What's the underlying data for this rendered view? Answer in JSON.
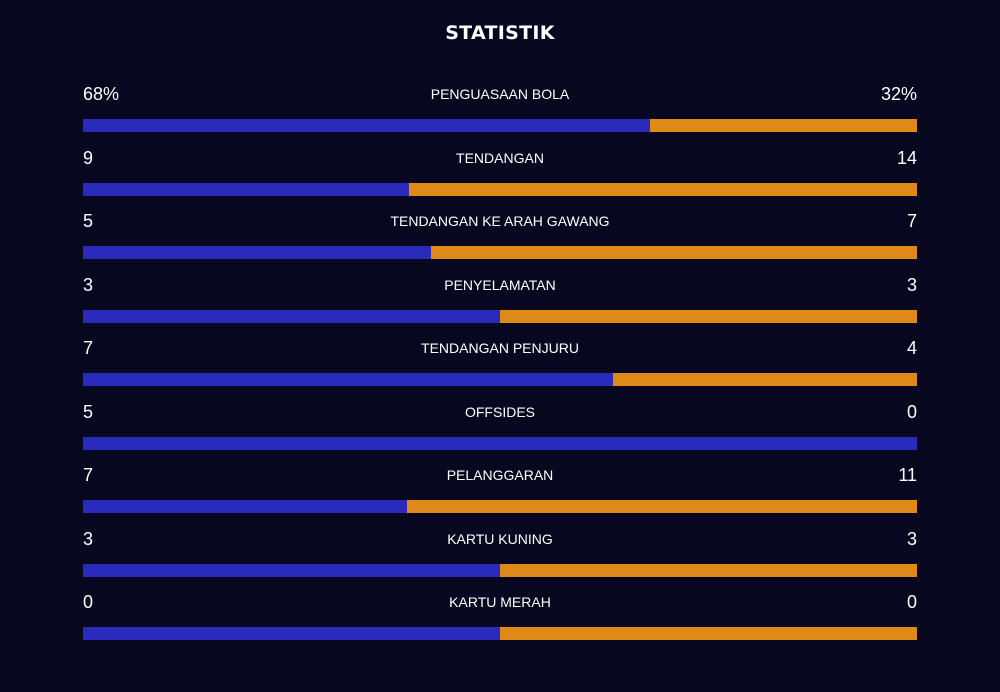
{
  "title": "STATISTIK",
  "colors": {
    "background": "#07071f",
    "home": "#2a2bbd",
    "away": "#df8a18",
    "text": "#ffffff"
  },
  "stats": [
    {
      "label": "PENGUASAAN BOLA",
      "home": "68%",
      "away": "32%",
      "home_share": 0.68
    },
    {
      "label": "TENDANGAN",
      "home": "9",
      "away": "14",
      "home_share": 0.391
    },
    {
      "label": "TENDANGAN KE ARAH GAWANG",
      "home": "5",
      "away": "7",
      "home_share": 0.417
    },
    {
      "label": "PENYELAMATAN",
      "home": "3",
      "away": "3",
      "home_share": 0.5
    },
    {
      "label": "TENDANGAN PENJURU",
      "home": "7",
      "away": "4",
      "home_share": 0.636
    },
    {
      "label": "OFFSIDES",
      "home": "5",
      "away": "0",
      "home_share": 1.0
    },
    {
      "label": "PELANGGARAN",
      "home": "7",
      "away": "11",
      "home_share": 0.389
    },
    {
      "label": "KARTU KUNING",
      "home": "3",
      "away": "3",
      "home_share": 0.5
    },
    {
      "label": "KARTU MERAH",
      "home": "0",
      "away": "0",
      "home_share": 0.5
    }
  ]
}
